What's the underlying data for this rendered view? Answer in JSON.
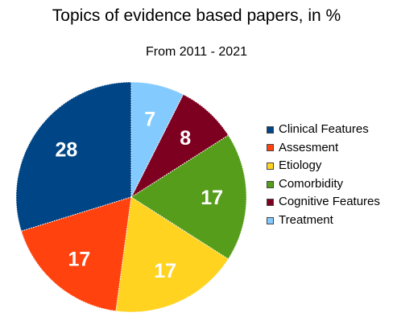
{
  "chart_data": {
    "type": "pie",
    "title": "Topics of evidence based papers, in %",
    "subtitle": "From 2011 - 2021",
    "slices": [
      {
        "label": "Clinical Features",
        "value": 28,
        "color": "#004586"
      },
      {
        "label": "Assesment",
        "value": 17,
        "color": "#ff420e"
      },
      {
        "label": "Etiology",
        "value": 17,
        "color": "#ffd320"
      },
      {
        "label": "Comorbidity",
        "value": 17,
        "color": "#579d1c"
      },
      {
        "label": "Cognitive Features",
        "value": 8,
        "color": "#7e0021"
      },
      {
        "label": "Treatment",
        "value": 7,
        "color": "#83caff"
      }
    ],
    "legend": "right",
    "data_labels": true
  }
}
